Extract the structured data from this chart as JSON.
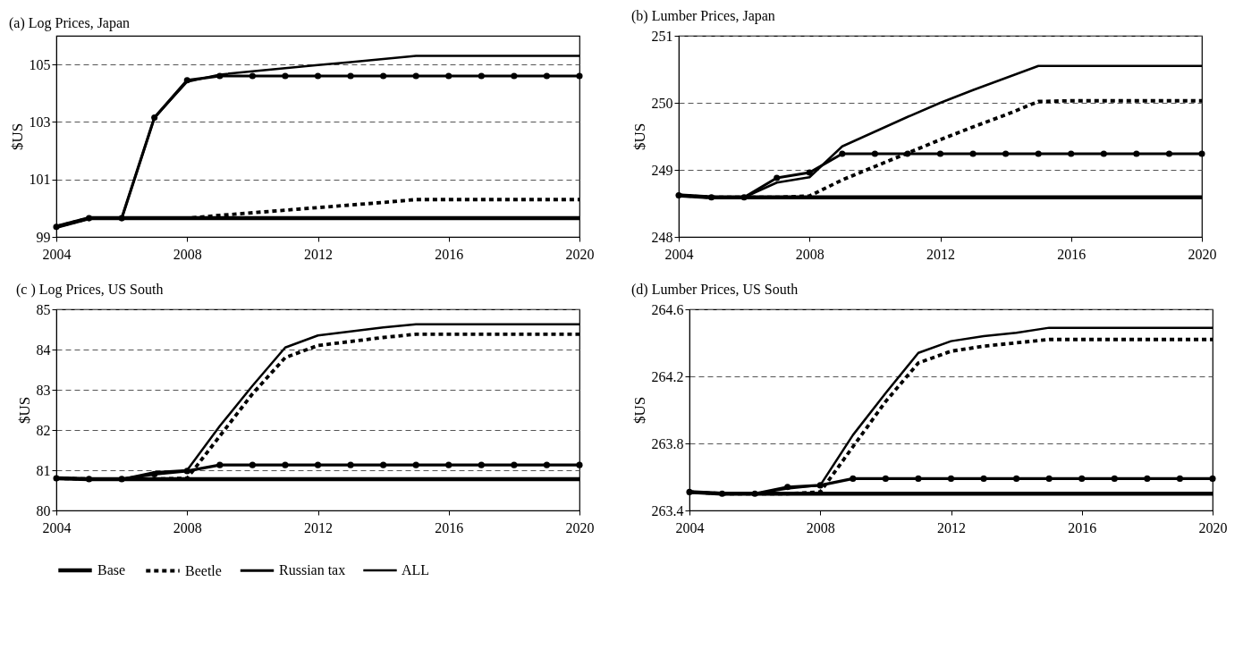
{
  "chart_data": [
    {
      "type": "line",
      "title": "(a) Log Prices, Japan",
      "ylabel": "$US",
      "x": [
        2004,
        2005,
        2006,
        2007,
        2008,
        2009,
        2010,
        2011,
        2012,
        2013,
        2014,
        2015,
        2016,
        2017,
        2018,
        2019,
        2020
      ],
      "xlim": [
        2004,
        2020
      ],
      "xticks": [
        2004,
        2008,
        2012,
        2016,
        2020
      ],
      "ylim": [
        99,
        106
      ],
      "yticks": [
        99,
        101,
        103,
        105
      ],
      "grid": "y",
      "legend": "bottom",
      "series": [
        {
          "name": "Base",
          "color": "#000000",
          "line_style": "solid",
          "values": [
            99.35,
            99.65,
            99.65,
            99.65,
            99.65,
            99.65,
            99.65,
            99.65,
            99.65,
            99.65,
            99.65,
            99.65,
            99.65,
            99.65,
            99.65,
            99.65,
            99.65
          ]
        },
        {
          "name": "Beetle",
          "color": "#000000",
          "line_style": "dashed",
          "values": [
            99.35,
            99.65,
            99.65,
            99.65,
            99.65,
            99.75,
            99.84,
            99.93,
            100.02,
            100.11,
            100.2,
            100.3,
            100.3,
            100.3,
            100.3,
            100.3,
            100.3
          ]
        },
        {
          "name": "Russian tax",
          "color": "#000000",
          "line_style": "solid",
          "marker": "circle",
          "values": [
            99.35,
            99.65,
            99.65,
            103.15,
            104.45,
            104.6,
            104.6,
            104.6,
            104.6,
            104.6,
            104.6,
            104.6,
            104.6,
            104.6,
            104.6,
            104.6,
            104.6
          ]
        },
        {
          "name": "ALL",
          "color": "#000000",
          "line_style": "solid",
          "values": [
            99.35,
            99.65,
            99.65,
            103.15,
            104.4,
            104.65,
            104.76,
            104.87,
            104.98,
            105.08,
            105.19,
            105.3,
            105.3,
            105.3,
            105.3,
            105.3,
            105.3
          ]
        }
      ]
    },
    {
      "type": "line",
      "title": "(b) Lumber Prices, Japan",
      "ylabel": "$US",
      "x": [
        2004,
        2005,
        2006,
        2007,
        2008,
        2009,
        2010,
        2011,
        2012,
        2013,
        2014,
        2015,
        2016,
        2017,
        2018,
        2019,
        2020
      ],
      "xlim": [
        2004,
        2020
      ],
      "xticks": [
        2004,
        2008,
        2012,
        2016,
        2020
      ],
      "ylim": [
        248,
        251
      ],
      "yticks": [
        248,
        249,
        250,
        251
      ],
      "grid": "y",
      "legend": "bottom",
      "series": [
        {
          "name": "Base",
          "color": "#000000",
          "line_style": "solid",
          "values": [
            248.62,
            248.59,
            248.59,
            248.59,
            248.59,
            248.59,
            248.59,
            248.59,
            248.59,
            248.59,
            248.59,
            248.59,
            248.59,
            248.59,
            248.59,
            248.59,
            248.59
          ]
        },
        {
          "name": "Beetle",
          "color": "#000000",
          "line_style": "dashed",
          "values": [
            248.62,
            248.59,
            248.59,
            248.59,
            248.61,
            248.85,
            249.05,
            249.25,
            249.45,
            249.64,
            249.82,
            250.02,
            250.03,
            250.03,
            250.03,
            250.03,
            250.03
          ]
        },
        {
          "name": "Russian tax",
          "color": "#000000",
          "line_style": "solid",
          "marker": "circle",
          "values": [
            248.62,
            248.59,
            248.59,
            248.88,
            248.96,
            249.24,
            249.24,
            249.24,
            249.24,
            249.24,
            249.24,
            249.24,
            249.24,
            249.24,
            249.24,
            249.24,
            249.24
          ]
        },
        {
          "name": "ALL",
          "color": "#000000",
          "line_style": "solid",
          "values": [
            248.62,
            248.59,
            248.59,
            248.81,
            248.89,
            249.35,
            249.57,
            249.79,
            250.0,
            250.19,
            250.37,
            250.55,
            250.55,
            250.55,
            250.55,
            250.55,
            250.55
          ]
        }
      ]
    },
    {
      "type": "line",
      "title": "(c ) Log Prices, US South",
      "ylabel": "$US",
      "x": [
        2004,
        2005,
        2006,
        2007,
        2008,
        2009,
        2010,
        2011,
        2012,
        2013,
        2014,
        2015,
        2016,
        2017,
        2018,
        2019,
        2020
      ],
      "xlim": [
        2004,
        2020
      ],
      "xticks": [
        2004,
        2008,
        2012,
        2016,
        2020
      ],
      "ylim": [
        80,
        85
      ],
      "yticks": [
        80,
        81,
        82,
        83,
        84,
        85
      ],
      "grid": "y",
      "legend": "bottom",
      "series": [
        {
          "name": "Base",
          "color": "#000000",
          "line_style": "solid",
          "values": [
            80.8,
            80.78,
            80.78,
            80.78,
            80.78,
            80.78,
            80.78,
            80.78,
            80.78,
            80.78,
            80.78,
            80.78,
            80.78,
            80.78,
            80.78,
            80.78,
            80.78
          ]
        },
        {
          "name": "Beetle",
          "color": "#000000",
          "line_style": "dashed",
          "values": [
            80.8,
            80.78,
            80.78,
            80.78,
            80.8,
            81.85,
            82.9,
            83.8,
            84.1,
            84.2,
            84.3,
            84.38,
            84.38,
            84.38,
            84.38,
            84.38,
            84.38
          ]
        },
        {
          "name": "Russian tax",
          "color": "#000000",
          "line_style": "solid",
          "marker": "circle",
          "values": [
            80.8,
            80.78,
            80.78,
            80.9,
            80.98,
            81.13,
            81.13,
            81.13,
            81.13,
            81.13,
            81.13,
            81.13,
            81.13,
            81.13,
            81.13,
            81.13,
            81.13
          ]
        },
        {
          "name": "ALL",
          "color": "#000000",
          "line_style": "solid",
          "values": [
            80.8,
            80.78,
            80.78,
            80.95,
            81.0,
            82.1,
            83.1,
            84.05,
            84.35,
            84.45,
            84.55,
            84.63,
            84.63,
            84.63,
            84.63,
            84.63,
            84.63
          ]
        }
      ]
    },
    {
      "type": "line",
      "title": "(d) Lumber Prices, US South",
      "ylabel": "$US",
      "x": [
        2004,
        2005,
        2006,
        2007,
        2008,
        2009,
        2010,
        2011,
        2012,
        2013,
        2014,
        2015,
        2016,
        2017,
        2018,
        2019,
        2020
      ],
      "xlim": [
        2004,
        2020
      ],
      "xticks": [
        2004,
        2008,
        2012,
        2016,
        2020
      ],
      "ylim": [
        263.4,
        264.6
      ],
      "yticks": [
        263.4,
        263.8,
        264.2,
        264.6
      ],
      "grid": "y",
      "legend": "bottom",
      "series": [
        {
          "name": "Base",
          "color": "#000000",
          "line_style": "solid",
          "values": [
            263.51,
            263.5,
            263.5,
            263.5,
            263.5,
            263.5,
            263.5,
            263.5,
            263.5,
            263.5,
            263.5,
            263.5,
            263.5,
            263.5,
            263.5,
            263.5,
            263.5
          ]
        },
        {
          "name": "Beetle",
          "color": "#000000",
          "line_style": "dashed",
          "values": [
            263.51,
            263.5,
            263.5,
            263.5,
            263.51,
            263.78,
            264.05,
            264.28,
            264.35,
            264.38,
            264.4,
            264.42,
            264.42,
            264.42,
            264.42,
            264.42,
            264.42
          ]
        },
        {
          "name": "Russian tax",
          "color": "#000000",
          "line_style": "solid",
          "marker": "circle",
          "values": [
            263.51,
            263.5,
            263.5,
            263.54,
            263.55,
            263.59,
            263.59,
            263.59,
            263.59,
            263.59,
            263.59,
            263.59,
            263.59,
            263.59,
            263.59,
            263.59,
            263.59
          ]
        },
        {
          "name": "ALL",
          "color": "#000000",
          "line_style": "solid",
          "values": [
            263.51,
            263.5,
            263.5,
            263.53,
            263.55,
            263.85,
            264.1,
            264.34,
            264.41,
            264.44,
            264.46,
            264.49,
            264.49,
            264.49,
            264.49,
            264.49,
            264.49
          ]
        }
      ]
    }
  ]
}
